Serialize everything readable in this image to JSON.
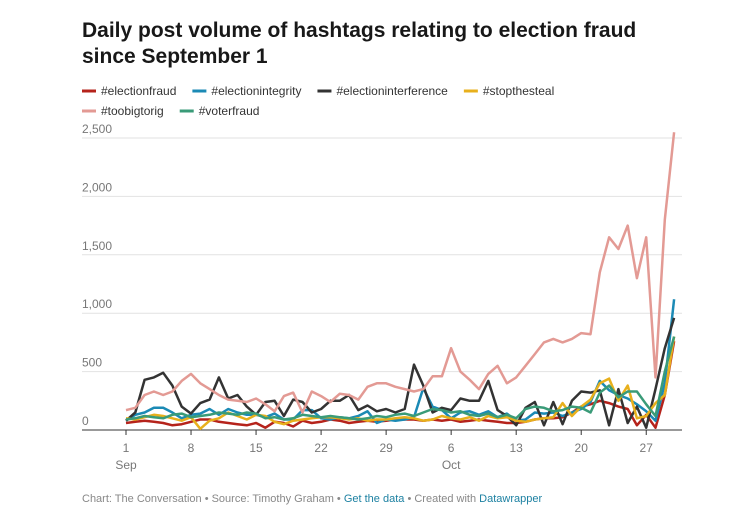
{
  "chart_data": {
    "type": "line",
    "title": [
      "Daily post volume of hashtags relating to election fraud",
      "since September 1"
    ],
    "categories": [
      "Sep 1",
      "Sep 2",
      "Sep 3",
      "Sep 4",
      "Sep 5",
      "Sep 6",
      "Sep 7",
      "Sep 8",
      "Sep 9",
      "Sep 10",
      "Sep 11",
      "Sep 12",
      "Sep 13",
      "Sep 14",
      "Sep 15",
      "Sep 16",
      "Sep 17",
      "Sep 18",
      "Sep 19",
      "Sep 20",
      "Sep 21",
      "Sep 22",
      "Sep 23",
      "Sep 24",
      "Sep 25",
      "Sep 26",
      "Sep 27",
      "Sep 28",
      "Sep 29",
      "Sep 30",
      "Oct 1",
      "Oct 2",
      "Oct 3",
      "Oct 4",
      "Oct 5",
      "Oct 6",
      "Oct 7",
      "Oct 8",
      "Oct 9",
      "Oct 10",
      "Oct 11",
      "Oct 12",
      "Oct 13",
      "Oct 14",
      "Oct 15",
      "Oct 16",
      "Oct 17",
      "Oct 18",
      "Oct 19",
      "Oct 20",
      "Oct 21",
      "Oct 22",
      "Oct 23",
      "Oct 24",
      "Oct 25",
      "Oct 26",
      "Oct 27",
      "Oct 28",
      "Oct 29",
      "Oct 30"
    ],
    "series": [
      {
        "name": "#electionfraud",
        "color": "#b5231b",
        "values": [
          60,
          70,
          80,
          70,
          60,
          40,
          50,
          70,
          90,
          90,
          70,
          60,
          50,
          40,
          60,
          20,
          70,
          60,
          30,
          80,
          60,
          70,
          90,
          80,
          60,
          70,
          80,
          70,
          80,
          90,
          90,
          90,
          80,
          90,
          80,
          90,
          70,
          80,
          90,
          80,
          70,
          60,
          60,
          70,
          90,
          100,
          100,
          110,
          150,
          200,
          220,
          250,
          230,
          200,
          180,
          40,
          130,
          20,
          300,
          760
        ]
      },
      {
        "name": "#electionintegrity",
        "color": "#1b8ab5",
        "values": [
          80,
          130,
          150,
          190,
          190,
          150,
          100,
          130,
          140,
          180,
          130,
          180,
          150,
          130,
          130,
          110,
          140,
          90,
          90,
          170,
          170,
          100,
          90,
          110,
          100,
          120,
          160,
          60,
          90,
          80,
          90,
          110,
          360,
          200,
          170,
          100,
          150,
          160,
          130,
          160,
          110,
          140,
          80,
          90,
          150,
          140,
          150,
          120,
          150,
          180,
          240,
          420,
          340,
          300,
          270,
          220,
          160,
          80,
          400,
          1120
        ]
      },
      {
        "name": "#electioninterference",
        "color": "#333333",
        "values": [
          80,
          150,
          430,
          450,
          490,
          380,
          200,
          140,
          230,
          260,
          450,
          270,
          300,
          200,
          130,
          240,
          250,
          120,
          260,
          240,
          150,
          180,
          250,
          250,
          300,
          170,
          210,
          160,
          180,
          150,
          180,
          560,
          380,
          150,
          190,
          170,
          270,
          250,
          250,
          420,
          170,
          120,
          40,
          190,
          240,
          40,
          240,
          50,
          250,
          330,
          320,
          340,
          40,
          350,
          60,
          200,
          20,
          350,
          700,
          960
        ]
      },
      {
        "name": "#stopthesteal",
        "color": "#e8b01c",
        "values": [
          100,
          90,
          110,
          130,
          120,
          100,
          80,
          110,
          10,
          80,
          100,
          150,
          120,
          90,
          130,
          120,
          70,
          50,
          80,
          90,
          100,
          110,
          110,
          100,
          90,
          100,
          80,
          90,
          90,
          100,
          110,
          100,
          80,
          90,
          120,
          100,
          90,
          110,
          80,
          120,
          100,
          110,
          80,
          70,
          90,
          100,
          110,
          230,
          120,
          200,
          260,
          400,
          440,
          250,
          380,
          100,
          120,
          230,
          300,
          800
        ]
      },
      {
        "name": "#toobigtorig",
        "color": "#e39a94",
        "values": [
          170,
          190,
          300,
          330,
          300,
          330,
          420,
          480,
          400,
          350,
          300,
          260,
          250,
          240,
          270,
          220,
          160,
          290,
          320,
          150,
          330,
          290,
          240,
          310,
          300,
          260,
          370,
          400,
          400,
          370,
          350,
          330,
          350,
          460,
          460,
          700,
          500,
          430,
          350,
          480,
          550,
          400,
          450,
          550,
          650,
          750,
          780,
          750,
          780,
          830,
          820,
          1350,
          1650,
          1550,
          1750,
          1300,
          1650,
          450,
          1800,
          2550
        ]
      },
      {
        "name": "#voterfraud",
        "color": "#3a9b78",
        "values": [
          90,
          100,
          120,
          110,
          100,
          130,
          140,
          110,
          120,
          130,
          150,
          140,
          130,
          150,
          140,
          100,
          110,
          90,
          100,
          130,
          120,
          110,
          120,
          110,
          100,
          90,
          100,
          120,
          110,
          130,
          140,
          120,
          150,
          180,
          170,
          150,
          160,
          130,
          120,
          140,
          110,
          130,
          100,
          180,
          200,
          190,
          160,
          170,
          200,
          190,
          150,
          320,
          380,
          280,
          330,
          330,
          220,
          120,
          500,
          800
        ]
      }
    ],
    "xticks": [
      {
        "value": "Sep 1",
        "label": "1"
      },
      {
        "value": "Sep 8",
        "label": "8"
      },
      {
        "value": "Sep 15",
        "label": "15"
      },
      {
        "value": "Sep 22",
        "label": "22"
      },
      {
        "value": "Sep 29",
        "label": "29"
      },
      {
        "value": "Oct 6",
        "label": "6"
      },
      {
        "value": "Oct 13",
        "label": "13"
      },
      {
        "value": "Oct 20",
        "label": "20"
      },
      {
        "value": "Oct 27",
        "label": "27"
      }
    ],
    "xtick_months": [
      {
        "value": "Sep 1",
        "label": "Sep"
      },
      {
        "value": "Oct 6",
        "label": "Oct"
      }
    ],
    "ylim": [
      0,
      2500
    ],
    "yticks": [
      0,
      500,
      {
        "value": 1000,
        "label": "1,000"
      },
      {
        "value": 1500,
        "label": "1,500"
      },
      {
        "value": 2000,
        "label": "2,000"
      },
      {
        "value": 2500,
        "label": "2,500"
      }
    ],
    "grid": true,
    "footer": [
      "Chart: The Conversation • Source: Timothy Graham • ",
      "Get the data",
      " • Created with ",
      "Datawrapper"
    ]
  }
}
